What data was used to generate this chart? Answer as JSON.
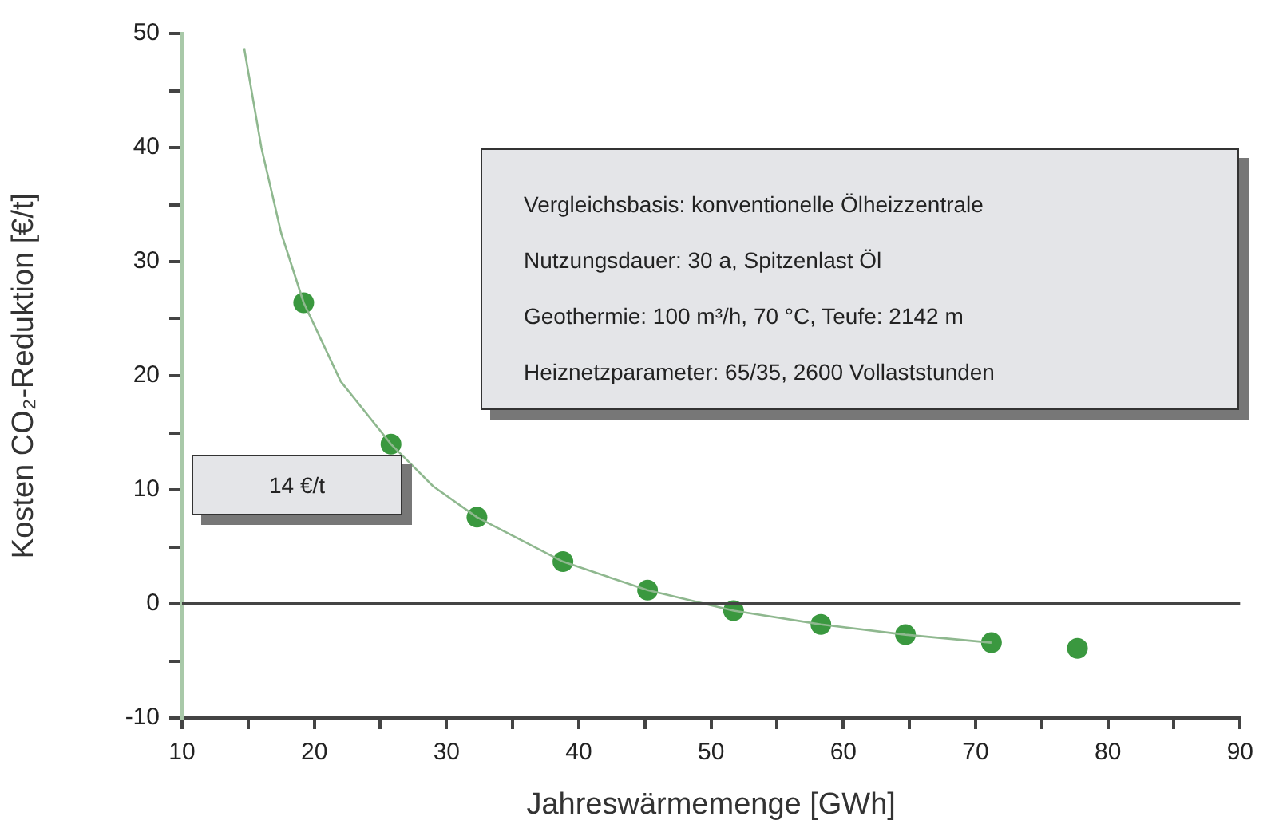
{
  "chart_data": {
    "type": "scatter",
    "xlabel": "Jahreswärmemenge [GWh]",
    "ylabel": "Kosten CO₂-Reduktion [€/t]",
    "xlim": [
      10,
      90
    ],
    "ylim": [
      -10,
      50
    ],
    "xticks": [
      10,
      {
        "value": 15,
        "label": null
      },
      20,
      {
        "value": 25,
        "label": null
      },
      30,
      {
        "value": 35,
        "label": null
      },
      40,
      {
        "value": 45,
        "label": null
      },
      50,
      {
        "value": 55,
        "label": null
      },
      60,
      {
        "value": 65,
        "label": null
      },
      70,
      {
        "value": 75,
        "label": null
      },
      80,
      {
        "value": 85,
        "label": null
      },
      90
    ],
    "yticks": [
      -10,
      {
        "value": -5,
        "label": null
      },
      0,
      {
        "value": 5,
        "label": null
      },
      10,
      {
        "value": 15,
        "label": null
      },
      20,
      {
        "value": 25,
        "label": null
      },
      30,
      {
        "value": 35,
        "label": null
      },
      40,
      {
        "value": 45,
        "label": null
      },
      50
    ],
    "grid": false,
    "legend": false,
    "marker": "circle",
    "series": [
      {
        "type": "line",
        "color": "#8fb88f",
        "line_style": "solid",
        "marker": "none",
        "x": [
          14.7,
          16,
          17.5,
          19.2,
          22,
          25.8,
          29,
          32.3,
          38.8,
          45.2,
          51.7,
          58.3,
          64.7,
          71.2
        ],
        "values": [
          48.7,
          40,
          32.5,
          26.4,
          19.5,
          14,
          10.3,
          7.6,
          3.7,
          1.2,
          -0.6,
          -1.8,
          -2.7,
          -3.4
        ]
      },
      {
        "color": "#3a983f",
        "x": [
          19.2,
          25.8,
          32.3,
          38.8,
          45.2,
          51.7,
          58.3,
          64.7,
          71.2,
          77.7
        ],
        "values": [
          26.4,
          14,
          7.6,
          3.7,
          1.2,
          -0.6,
          -1.8,
          -2.7,
          -3.4,
          -3.9
        ]
      }
    ],
    "ref_lines": [
      {
        "axis": "y",
        "value": 0,
        "color": "#444444"
      }
    ],
    "annotations": [
      "14 €/t",
      "Vergleichsbasis: konventionelle Ölheizzentrale\nNutzungsdauer: 30 a, Spitzenlast Öl\nGeothermie: 100 m³/h, 70 °C, Teufe: 2142 m\nHeiznetzparameter: 65/35, 2600 Vollaststunden"
    ]
  }
}
